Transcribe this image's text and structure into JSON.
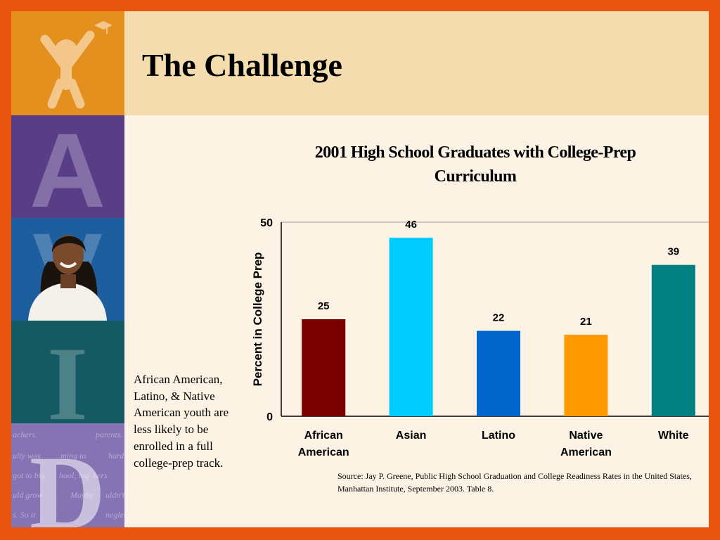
{
  "slide": {
    "title": "The Challenge",
    "side_text": "African American, Latino, & Native American youth are less likely to be enrolled in a full college-prep track.",
    "source_text": "Source: Jay P. Greene, Public High School Graduation  and College Readiness Rates in the United States, Manhattan Institute, September 2003. Table 8.",
    "decor": {
      "logo_letters": [
        "A",
        "V",
        "I",
        "D"
      ],
      "background_script": [
        "achers.",
        "parents.",
        "ulty was",
        "ming to",
        "hard",
        "got to big",
        "hool, big",
        "hers",
        "uld grow",
        "Maybe",
        "uldn't",
        "s. So it",
        "neglecte"
      ]
    }
  },
  "colors": {
    "frame": "#e8550e",
    "title_band": "#f4dcae",
    "slide_bg": "#fcf3e4",
    "strip_orange": "#e3901f",
    "strip_purple": "#5a3d87",
    "strip_blue": "#1d5e9e",
    "strip_teal": "#155a62",
    "strip_lavender": "#8573b3"
  },
  "chart_data": {
    "type": "bar",
    "title": "2001 High School Graduates with College-Prep Curriculum",
    "ylabel": "Percent in College Prep",
    "xlabel": "",
    "categories": [
      "African American",
      "Asian",
      "Latino",
      "Native American",
      "White"
    ],
    "category_lines": [
      [
        "African",
        "American"
      ],
      [
        "Asian"
      ],
      [
        "Latino"
      ],
      [
        "Native",
        "American"
      ],
      [
        "White"
      ]
    ],
    "values": [
      25,
      46,
      22,
      21,
      39
    ],
    "value_labels": [
      "25",
      "46",
      "22",
      "21",
      "39"
    ],
    "bar_colors": [
      "#7b0000",
      "#00ccff",
      "#0066cc",
      "#ff9900",
      "#008080"
    ],
    "ylim": [
      0,
      50
    ],
    "yticks": [
      "0",
      "50"
    ],
    "grid": false
  }
}
